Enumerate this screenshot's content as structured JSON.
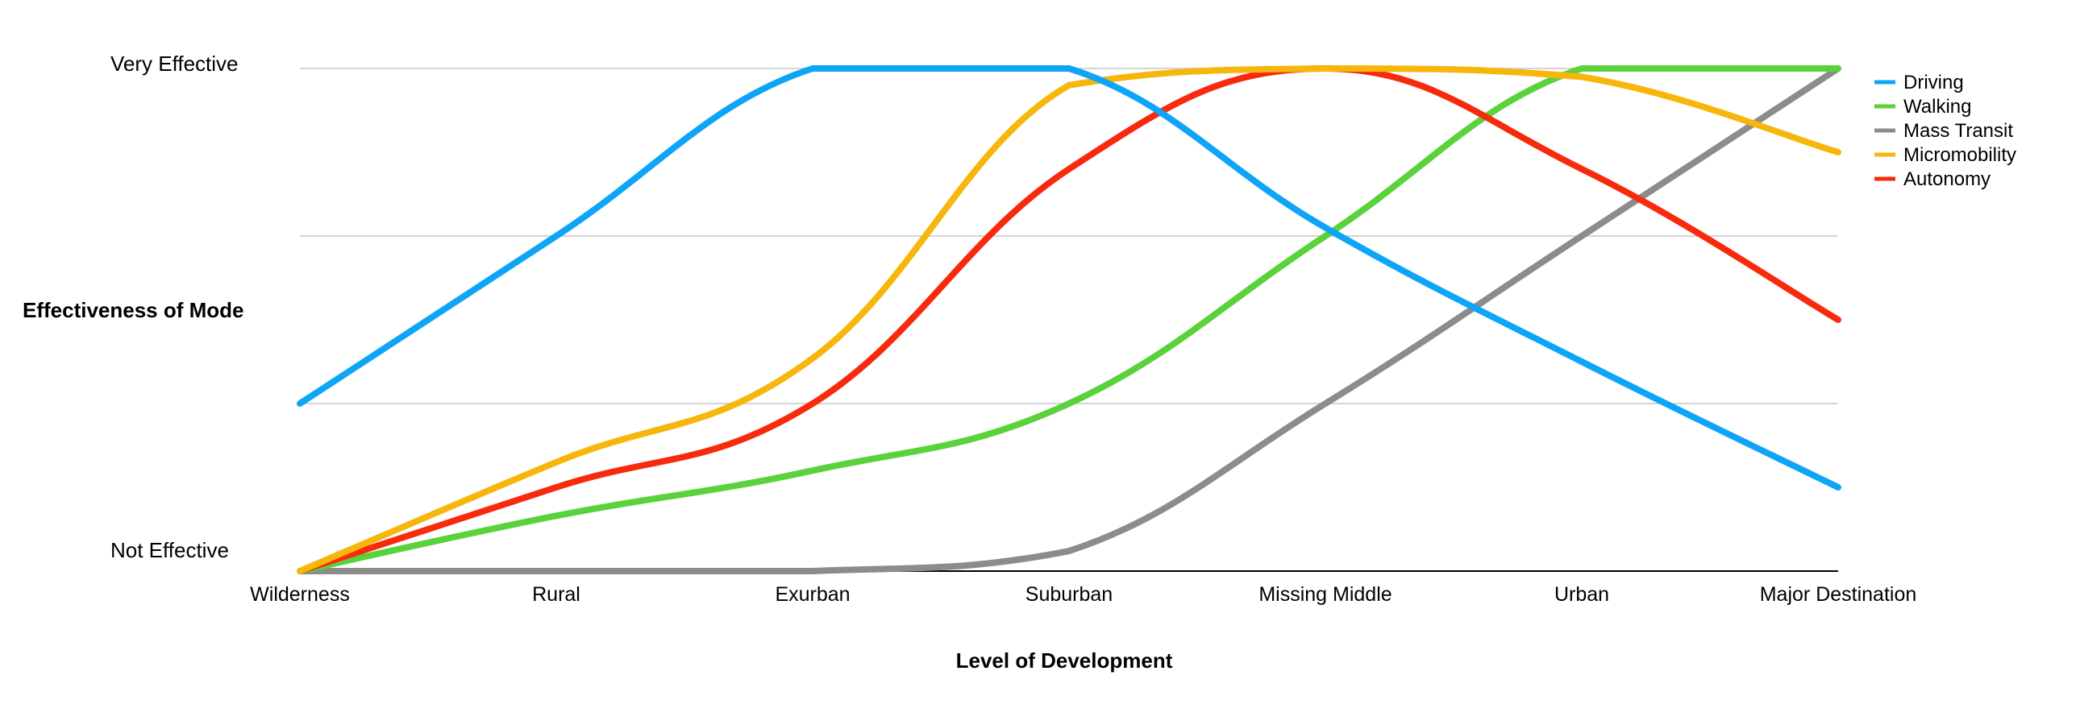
{
  "chart_data": {
    "type": "line",
    "title": "",
    "xlabel": "Level of Development",
    "ylabel": "Effectiveness of Mode",
    "categories": [
      "Wilderness",
      "Rural",
      "Exurban",
      "Suburban",
      "Missing Middle",
      "Urban",
      "Major Destination"
    ],
    "y_tick_labels": {
      "min": "Not Effective",
      "max": "Very Effective"
    },
    "ylim": [
      0,
      3
    ],
    "grid": true,
    "legend_position": "top-right",
    "series": [
      {
        "name": "Driving",
        "color": "#0ea5f7",
        "values": [
          1,
          2,
          3,
          3,
          2.05,
          1.25,
          0.5
        ]
      },
      {
        "name": "Walking",
        "color": "#5ad23c",
        "values": [
          0,
          0.33,
          0.6,
          1,
          2,
          3,
          3
        ]
      },
      {
        "name": "Mass Transit",
        "color": "#8c8c8c",
        "values": [
          0,
          0,
          0,
          0.12,
          1,
          2,
          3
        ]
      },
      {
        "name": "Micromobility",
        "color": "#f6b60c",
        "values": [
          0,
          0.65,
          1.27,
          2.9,
          3,
          2.95,
          2.5
        ]
      },
      {
        "name": "Autonomy",
        "color": "#f82a0e",
        "values": [
          0,
          0.5,
          1,
          2.4,
          3,
          2.4,
          1.5
        ]
      }
    ]
  }
}
